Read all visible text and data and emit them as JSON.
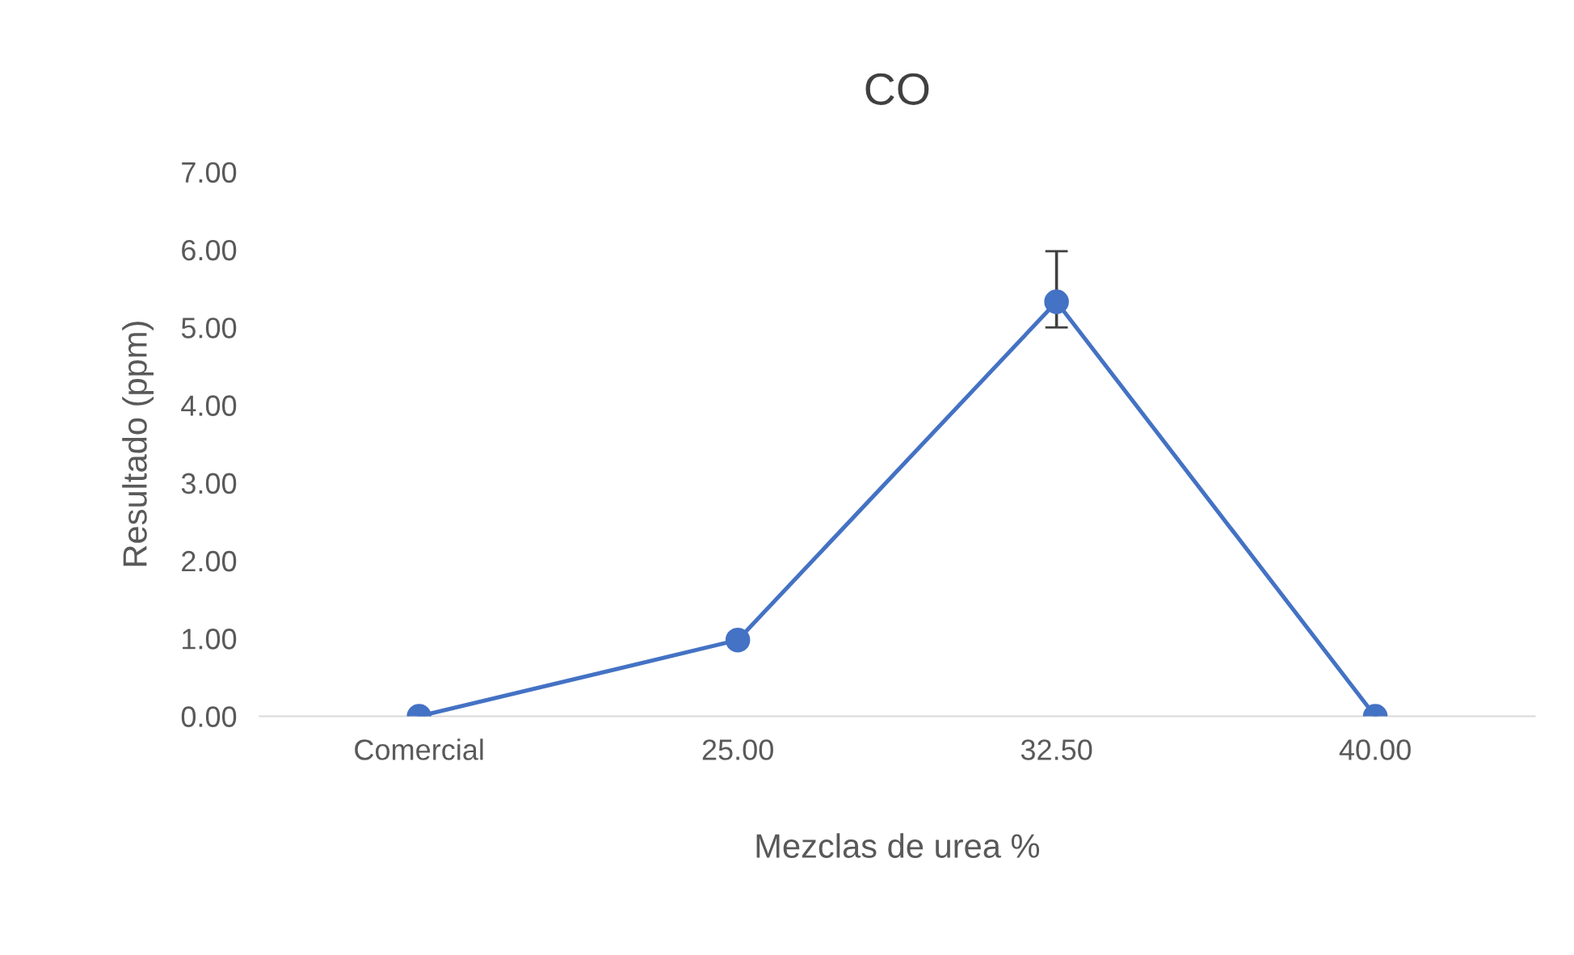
{
  "chart_data": {
    "type": "line",
    "title": "CO",
    "xlabel": "Mezclas de urea %",
    "ylabel": "Resultado (ppm)",
    "categories": [
      "Comercial",
      "25.00",
      "32.50",
      "40.00"
    ],
    "series": [
      {
        "color": "#4472c4",
        "values": [
          0,
          0.98,
          5.33,
          0
        ],
        "errors": [
          null,
          null,
          [
            5.0,
            5.98
          ],
          null
        ]
      }
    ],
    "ylim": [
      0,
      7
    ],
    "yticks": [
      {
        "value": 0,
        "label": "0.00"
      },
      {
        "value": 1,
        "label": "1.00"
      },
      {
        "value": 2,
        "label": "2.00"
      },
      {
        "value": 3,
        "label": "3.00"
      },
      {
        "value": 4,
        "label": "4.00"
      },
      {
        "value": 5,
        "label": "5.00"
      },
      {
        "value": 6,
        "label": "6.00"
      },
      {
        "value": 7,
        "label": "7.00"
      }
    ],
    "grid": false,
    "legend": false,
    "marker": "circle",
    "line_style": "solid"
  }
}
